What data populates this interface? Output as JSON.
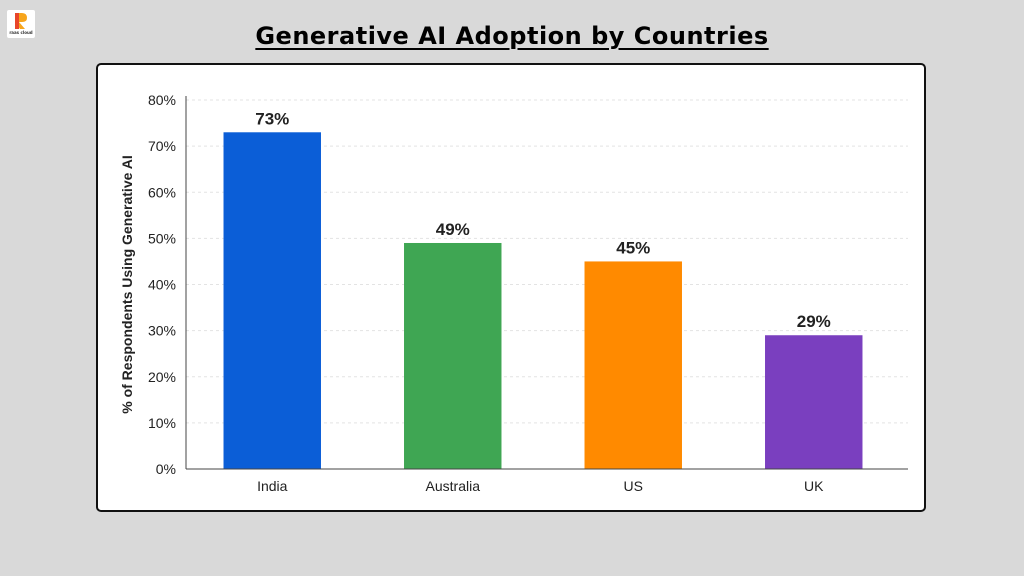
{
  "logo": {
    "text": "raas cloud",
    "icon": "raas-cloud-logo-icon",
    "colors": [
      "#f7a51c",
      "#e8452a"
    ]
  },
  "page": {
    "title": "Generative AI Adoption by Countries"
  },
  "chart_data": {
    "type": "bar",
    "title": "",
    "xlabel": "",
    "ylabel": "% of Respondents Using Generative AI",
    "categories": [
      "India",
      "Australia",
      "US",
      "UK"
    ],
    "values": [
      73,
      49,
      45,
      29
    ],
    "data_labels": [
      "73%",
      "49%",
      "45%",
      "29%"
    ],
    "colors": [
      "#0b5ed7",
      "#3fa653",
      "#ff8a00",
      "#7a3fbf"
    ],
    "ylim": [
      0,
      80
    ],
    "yticks": [
      0,
      10,
      20,
      30,
      40,
      50,
      60,
      70,
      80
    ],
    "ytick_labels": [
      "0%",
      "10%",
      "20%",
      "30%",
      "40%",
      "50%",
      "60%",
      "70%",
      "80%"
    ],
    "grid": true,
    "legend": "none"
  }
}
